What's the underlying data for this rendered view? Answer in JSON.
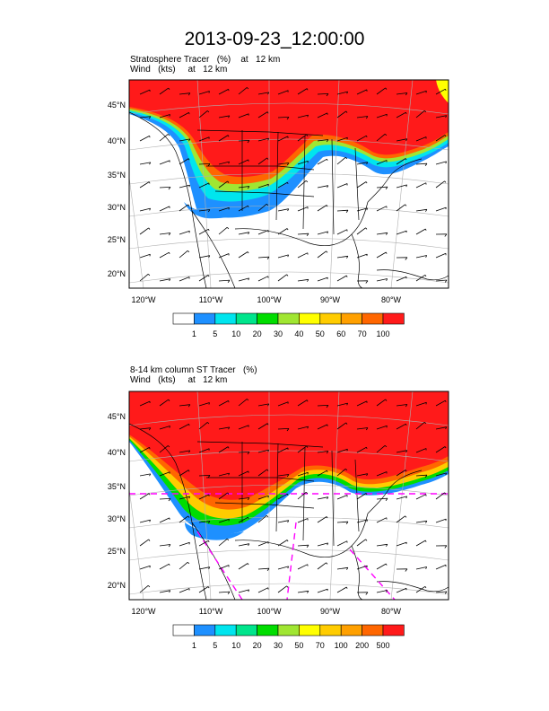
{
  "title": "2013-09-23_12:00:00",
  "panels": [
    {
      "line1": "Stratosphere Tracer   (%)    at   12 km",
      "line2": "Wind   (kts)     at   12 km",
      "lat_labels": [
        "45°N",
        "40°N",
        "35°N",
        "30°N",
        "25°N",
        "20°N"
      ],
      "lon_labels": [
        "120°W",
        "110°W",
        "100°W",
        "90°W",
        "80°W"
      ],
      "colorbar": {
        "labels": [
          "1",
          "5",
          "10",
          "20",
          "30",
          "40",
          "50",
          "60",
          "70",
          "100"
        ],
        "colors": [
          "#ffffff",
          "#1e90ff",
          "#00e5ee",
          "#00e58c",
          "#00dd00",
          "#a0e632",
          "#ffff00",
          "#ffcc00",
          "#ffa000",
          "#ff6600",
          "#ff1a1a"
        ]
      }
    },
    {
      "line1": "8-14 km column ST Tracer   (%)",
      "line2": "Wind   (kts)     at   12 km",
      "lat_labels": [
        "45°N",
        "40°N",
        "35°N",
        "30°N",
        "25°N",
        "20°N"
      ],
      "lon_labels": [
        "120°W",
        "110°W",
        "100°W",
        "90°W",
        "80°W"
      ],
      "colorbar": {
        "labels": [
          "1",
          "5",
          "10",
          "20",
          "30",
          "50",
          "70",
          "100",
          "200",
          "500"
        ],
        "colors": [
          "#ffffff",
          "#1e90ff",
          "#00e5ee",
          "#00e58c",
          "#00dd00",
          "#a0e632",
          "#ffff00",
          "#ffcc00",
          "#ffa000",
          "#ff6600",
          "#ff1a1a"
        ]
      }
    }
  ]
}
